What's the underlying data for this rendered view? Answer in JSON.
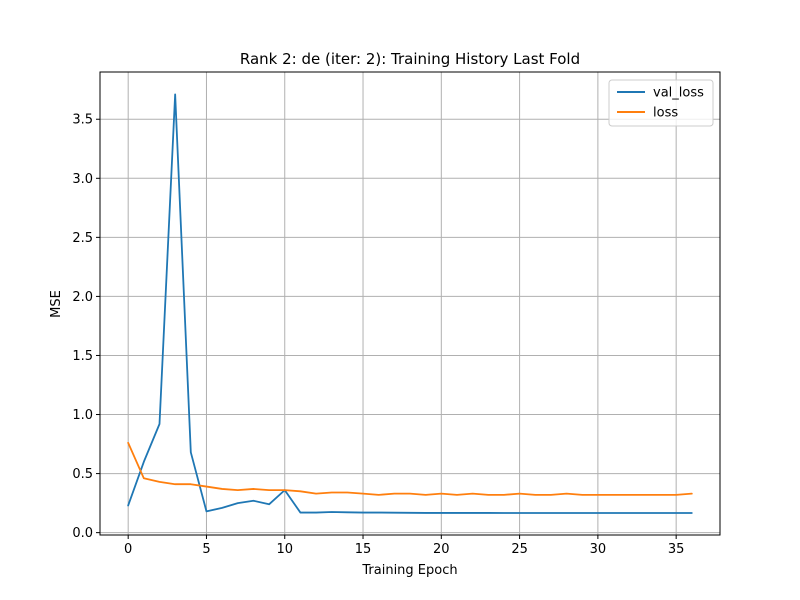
{
  "chart_data": {
    "type": "line",
    "title": "Rank 2: de (iter: 2): Training History Last Fold",
    "xlabel": "Training Epoch",
    "ylabel": "MSE",
    "xlim": [
      -1.8,
      37.8
    ],
    "ylim": [
      -0.02,
      3.9
    ],
    "xticks": [
      0,
      5,
      10,
      15,
      20,
      25,
      30,
      35
    ],
    "xtick_labels": [
      "0",
      "5",
      "10",
      "15",
      "20",
      "25",
      "30",
      "35"
    ],
    "yticks": [
      0.0,
      0.5,
      1.0,
      1.5,
      2.0,
      2.5,
      3.0,
      3.5
    ],
    "ytick_labels": [
      "0.0",
      "0.5",
      "1.0",
      "1.5",
      "2.0",
      "2.5",
      "3.0",
      "3.5"
    ],
    "grid": true,
    "legend": "top-right",
    "x": [
      0,
      1,
      2,
      3,
      4,
      5,
      6,
      7,
      8,
      9,
      10,
      11,
      12,
      13,
      14,
      15,
      16,
      17,
      18,
      19,
      20,
      21,
      22,
      23,
      24,
      25,
      26,
      27,
      28,
      29,
      30,
      31,
      32,
      33,
      34,
      35,
      36
    ],
    "series": [
      {
        "name": "val_loss",
        "color": "#1f77b4",
        "values": [
          0.23,
          0.6,
          0.92,
          3.71,
          0.68,
          0.18,
          0.21,
          0.25,
          0.27,
          0.24,
          0.36,
          0.17,
          0.17,
          0.175,
          0.172,
          0.17,
          0.17,
          0.169,
          0.168,
          0.167,
          0.167,
          0.167,
          0.167,
          0.167,
          0.166,
          0.166,
          0.166,
          0.166,
          0.166,
          0.166,
          0.166,
          0.166,
          0.166,
          0.166,
          0.166,
          0.166,
          0.166
        ]
      },
      {
        "name": "loss",
        "color": "#ff7f0e",
        "values": [
          0.76,
          0.46,
          0.43,
          0.41,
          0.41,
          0.39,
          0.37,
          0.36,
          0.37,
          0.36,
          0.36,
          0.35,
          0.33,
          0.34,
          0.34,
          0.33,
          0.32,
          0.33,
          0.33,
          0.32,
          0.33,
          0.32,
          0.33,
          0.32,
          0.32,
          0.33,
          0.32,
          0.32,
          0.33,
          0.32,
          0.32,
          0.32,
          0.32,
          0.32,
          0.32,
          0.32,
          0.33
        ]
      }
    ]
  }
}
